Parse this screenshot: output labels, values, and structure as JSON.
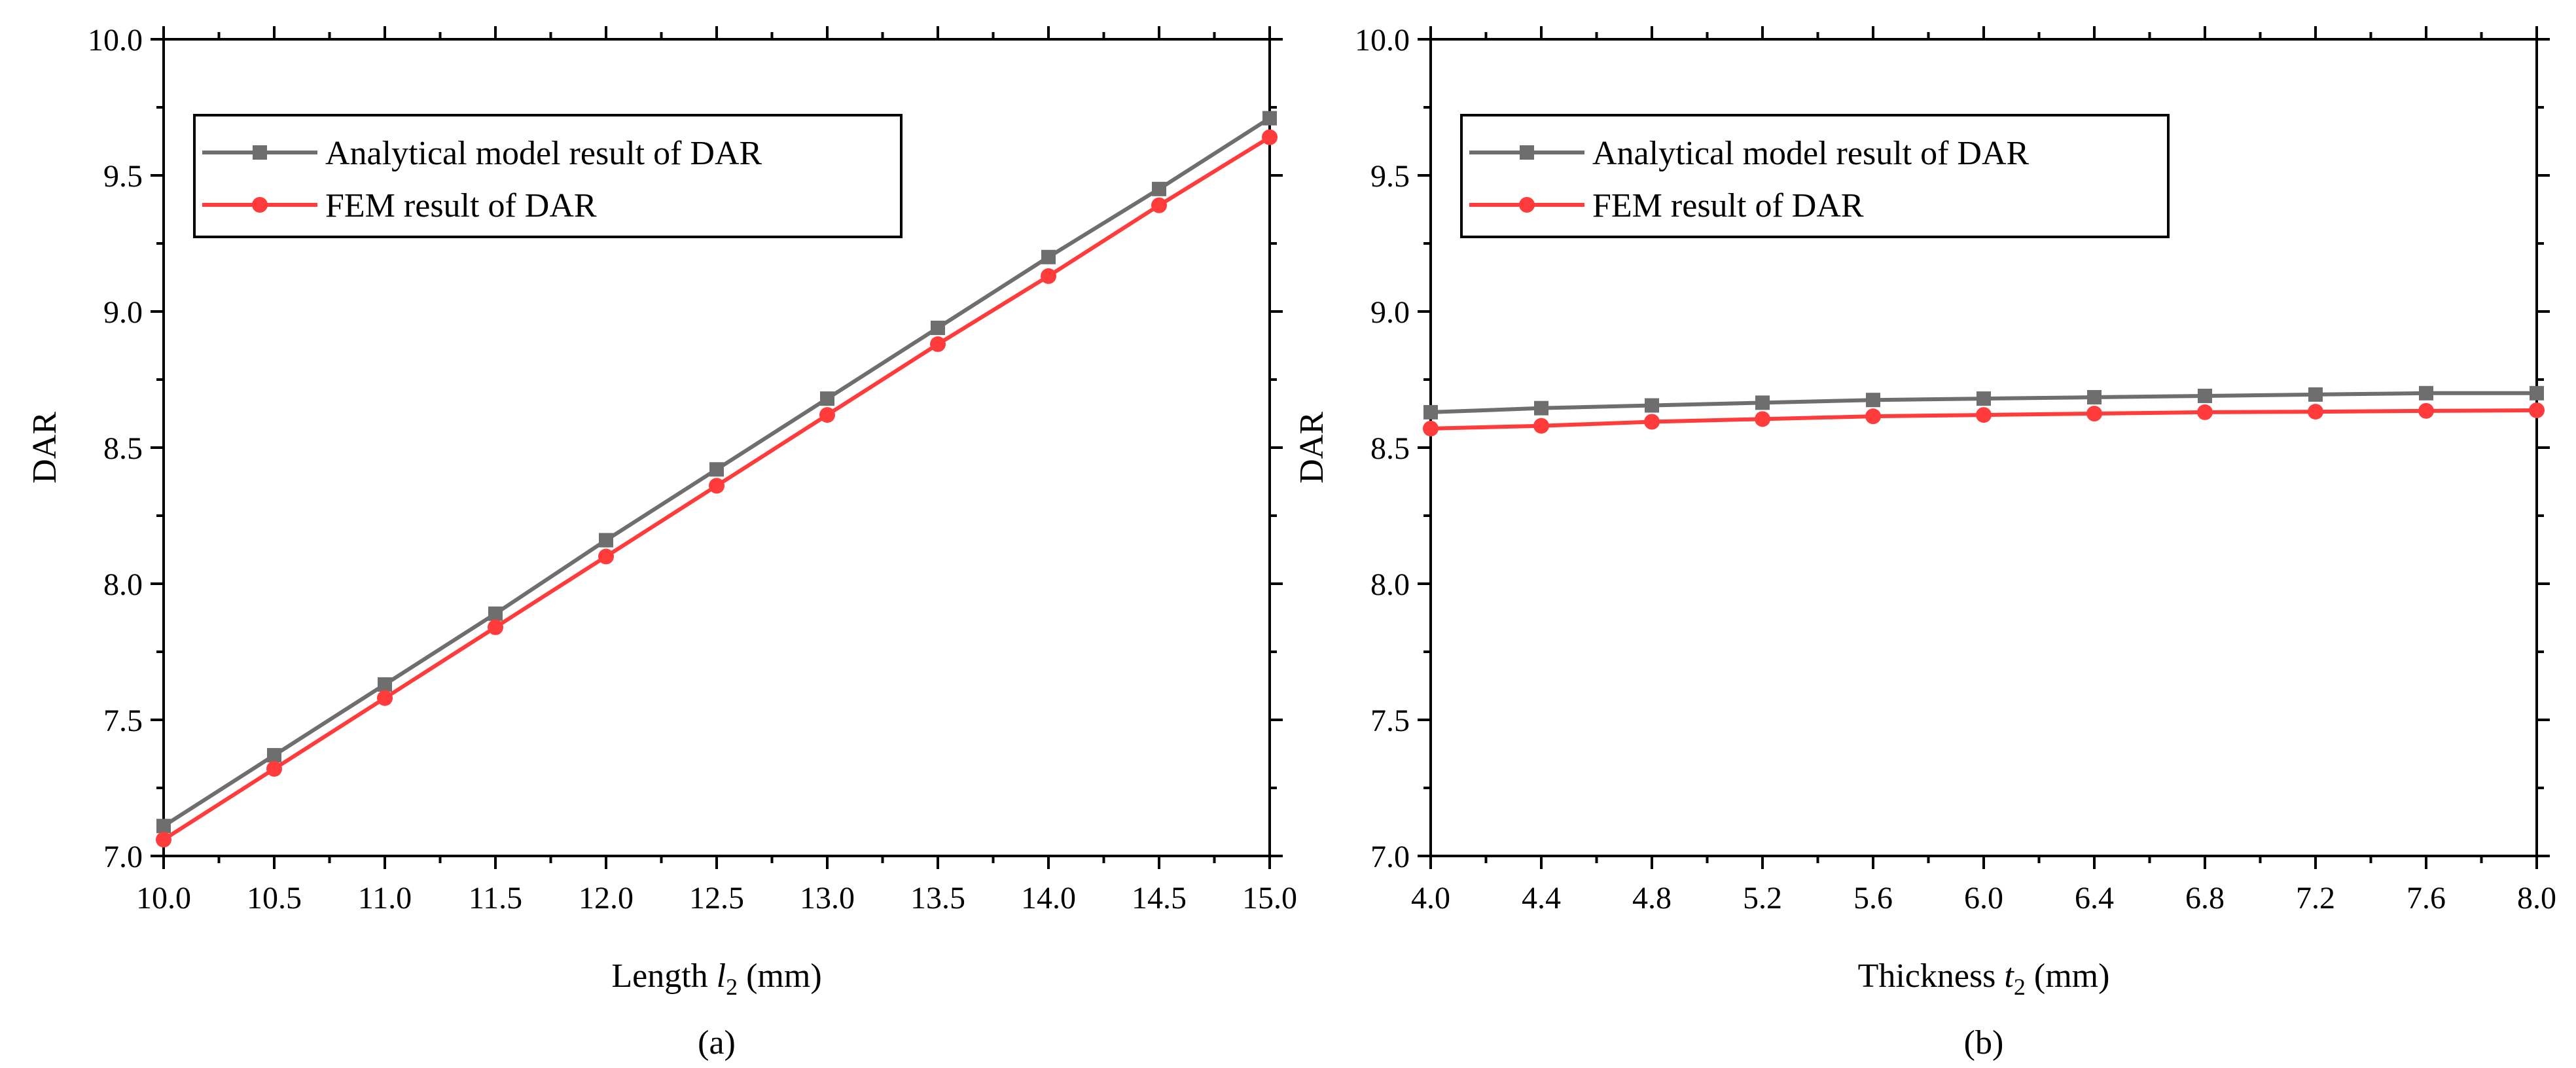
{
  "chart_data": [
    {
      "type": "line",
      "panel_label": "(a)",
      "title": "",
      "xlabel": {
        "prefix": "Length ",
        "var": "l",
        "sub": "2",
        "suffix": " (mm)"
      },
      "ylabel": "DAR",
      "xlim": [
        10.0,
        15.0
      ],
      "ylim": [
        7.0,
        10.0
      ],
      "xticks": [
        10.0,
        10.5,
        11.0,
        11.5,
        12.0,
        12.5,
        13.0,
        13.5,
        14.0,
        14.5,
        15.0
      ],
      "xtick_labels": [
        "10.0",
        "10.5",
        "11.0",
        "11.5",
        "12.0",
        "12.5",
        "13.0",
        "13.5",
        "14.0",
        "14.5",
        "15.0"
      ],
      "yticks": [
        7.0,
        7.5,
        8.0,
        8.5,
        9.0,
        9.5,
        10.0
      ],
      "ytick_labels": [
        "7.0",
        "7.5",
        "8.0",
        "8.5",
        "9.0",
        "9.5",
        "10.0"
      ],
      "legend_position": "top-left",
      "x": [
        10.0,
        10.5,
        11.0,
        11.5,
        12.0,
        12.5,
        13.0,
        13.5,
        14.0,
        14.5,
        15.0
      ],
      "series": [
        {
          "name": "Analytical model result of DAR",
          "color": "#6e6e6e",
          "marker": "square",
          "values": [
            7.11,
            7.37,
            7.63,
            7.89,
            8.16,
            8.42,
            8.68,
            8.94,
            9.2,
            9.45,
            9.71
          ]
        },
        {
          "name": "FEM result of DAR",
          "color": "#ff3b3b",
          "marker": "circle",
          "values": [
            7.06,
            7.32,
            7.58,
            7.84,
            8.1,
            8.36,
            8.62,
            8.88,
            9.13,
            9.39,
            9.64
          ]
        }
      ]
    },
    {
      "type": "line",
      "panel_label": "(b)",
      "title": "",
      "xlabel": {
        "prefix": "Thickness ",
        "var": "t",
        "sub": "2",
        "suffix": " (mm)"
      },
      "ylabel": "DAR",
      "xlim": [
        4.0,
        8.0
      ],
      "ylim": [
        7.0,
        10.0
      ],
      "xticks": [
        4.0,
        4.4,
        4.8,
        5.2,
        5.6,
        6.0,
        6.4,
        6.8,
        7.2,
        7.6,
        8.0
      ],
      "xtick_labels": [
        "4.0",
        "4.4",
        "4.8",
        "5.2",
        "5.6",
        "6.0",
        "6.4",
        "6.8",
        "7.2",
        "7.6",
        "8.0"
      ],
      "yticks": [
        7.0,
        7.5,
        8.0,
        8.5,
        9.0,
        9.5,
        10.0
      ],
      "ytick_labels": [
        "7.0",
        "7.5",
        "8.0",
        "8.5",
        "9.0",
        "9.5",
        "10.0"
      ],
      "legend_position": "top-left",
      "x": [
        4.0,
        4.4,
        4.8,
        5.2,
        5.6,
        6.0,
        6.4,
        6.8,
        7.2,
        7.6,
        8.0
      ],
      "series": [
        {
          "name": "Analytical model result of DAR",
          "color": "#6e6e6e",
          "marker": "square",
          "values": [
            8.63,
            8.645,
            8.655,
            8.665,
            8.675,
            8.68,
            8.685,
            8.69,
            8.695,
            8.7,
            8.7
          ]
        },
        {
          "name": "FEM result of DAR",
          "color": "#ff3b3b",
          "marker": "circle",
          "values": [
            8.57,
            8.58,
            8.595,
            8.605,
            8.615,
            8.62,
            8.625,
            8.63,
            8.632,
            8.635,
            8.637
          ]
        }
      ]
    }
  ]
}
